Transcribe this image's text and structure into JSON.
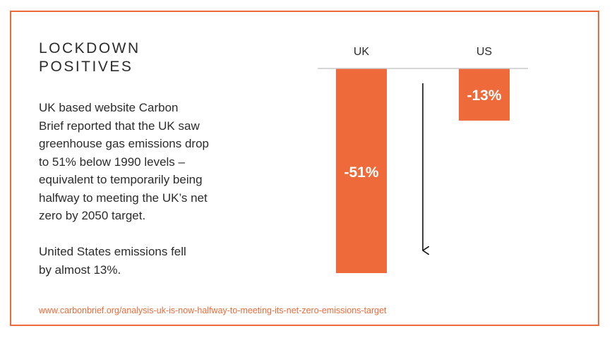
{
  "text": {
    "title_lines": [
      "LOCKDOWN",
      "POSITIVES"
    ],
    "paragraph1_lines": [
      "UK based website Carbon",
      "Brief reported that the UK saw",
      "greenhouse gas emissions drop",
      "to 51% below 1990 levels –",
      "equivalent to temporarily being",
      "halfway to meeting the UK’s net",
      "zero by 2050 target."
    ],
    "paragraph2_lines": [
      "United States emissions fell",
      "by almost 13%."
    ],
    "source": "www.carbonbrief.org/analysis-uk-is-now-halfway-to-meeting-its-net-zero-emissions-target"
  },
  "colors": {
    "accent": "#ee6a3a",
    "text": "#2b2b2b",
    "baseline": "#c8c8c8"
  },
  "chart_data": {
    "type": "bar",
    "categories": [
      "UK",
      "US"
    ],
    "values": [
      -51,
      -13
    ],
    "data_labels": [
      "-51%",
      "-13%"
    ],
    "ylim": [
      -51,
      0
    ],
    "grid": false,
    "annotations": [
      "downward-arrow"
    ]
  }
}
